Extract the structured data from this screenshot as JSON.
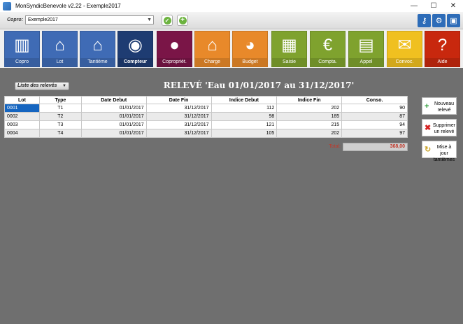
{
  "window": {
    "title": "MonSyndicBenevole v2.22 - Exemple2017",
    "minimize": "—",
    "maximize": "☐",
    "close": "✕"
  },
  "copro_bar": {
    "label": "Copro",
    "selected": "Exemple2017",
    "validate_icon": "check-icon",
    "add_icon": "plus-icon",
    "tools": [
      "key-icon",
      "gear-icon",
      "save-icon"
    ]
  },
  "modules": [
    {
      "label": "Copro",
      "color": "#3f6bb5",
      "icon": "building-icon"
    },
    {
      "label": "Lot",
      "color": "#3f6bb5",
      "icon": "houses-icon"
    },
    {
      "label": "Tantième",
      "color": "#3f6bb5",
      "icon": "ruler-house-icon"
    },
    {
      "label": "Compteur",
      "color": "#1e3c72",
      "icon": "meter-icon"
    },
    {
      "label": "Copropriét.",
      "color": "#7a1547",
      "icon": "person-icon"
    },
    {
      "label": "Charge",
      "color": "#e8892a",
      "icon": "house-doc-icon"
    },
    {
      "label": "Budget",
      "color": "#e8892a",
      "icon": "pie-icon"
    },
    {
      "label": "Saisie",
      "color": "#7fa22e",
      "icon": "keyboard-icon"
    },
    {
      "label": "Compta.",
      "color": "#7fa22e",
      "icon": "chart-icon"
    },
    {
      "label": "Appel",
      "color": "#7fa22e",
      "icon": "invoice-icon"
    },
    {
      "label": "Convoc.",
      "color": "#f0c020",
      "icon": "envelope-icon"
    },
    {
      "label": "Aide",
      "color": "#c8280e",
      "icon": "question-icon"
    }
  ],
  "subheader": {
    "list_button": "Liste des relevés",
    "title": "RELEVÉ 'Eau 01/01/2017 au 31/12/2017'"
  },
  "table": {
    "headers": [
      "Lot",
      "Type",
      "Date Debut",
      "Date Fin",
      "Indice Debut",
      "Indice Fin",
      "Conso."
    ],
    "rows": [
      [
        "0001",
        "T1",
        "01/01/2017",
        "31/12/2017",
        "112",
        "202",
        "90"
      ],
      [
        "0002",
        "T2",
        "01/01/2017",
        "31/12/2017",
        "98",
        "185",
        "87"
      ],
      [
        "0003",
        "T3",
        "01/01/2017",
        "31/12/2017",
        "121",
        "215",
        "94"
      ],
      [
        "0004",
        "T4",
        "01/01/2017",
        "31/12/2017",
        "105",
        "202",
        "97"
      ]
    ],
    "total_label": "Total:",
    "total_value": "368,00"
  },
  "side_buttons": [
    {
      "label": "Nouveau relevé",
      "icon": "plus-icon",
      "color": "#2e9e3a"
    },
    {
      "label": "Supprimer un relevé",
      "icon": "x-icon",
      "color": "#d62222"
    },
    {
      "label": "Mise à jour tantièmes",
      "icon": "refresh-icon",
      "color": "#c9a227"
    }
  ]
}
